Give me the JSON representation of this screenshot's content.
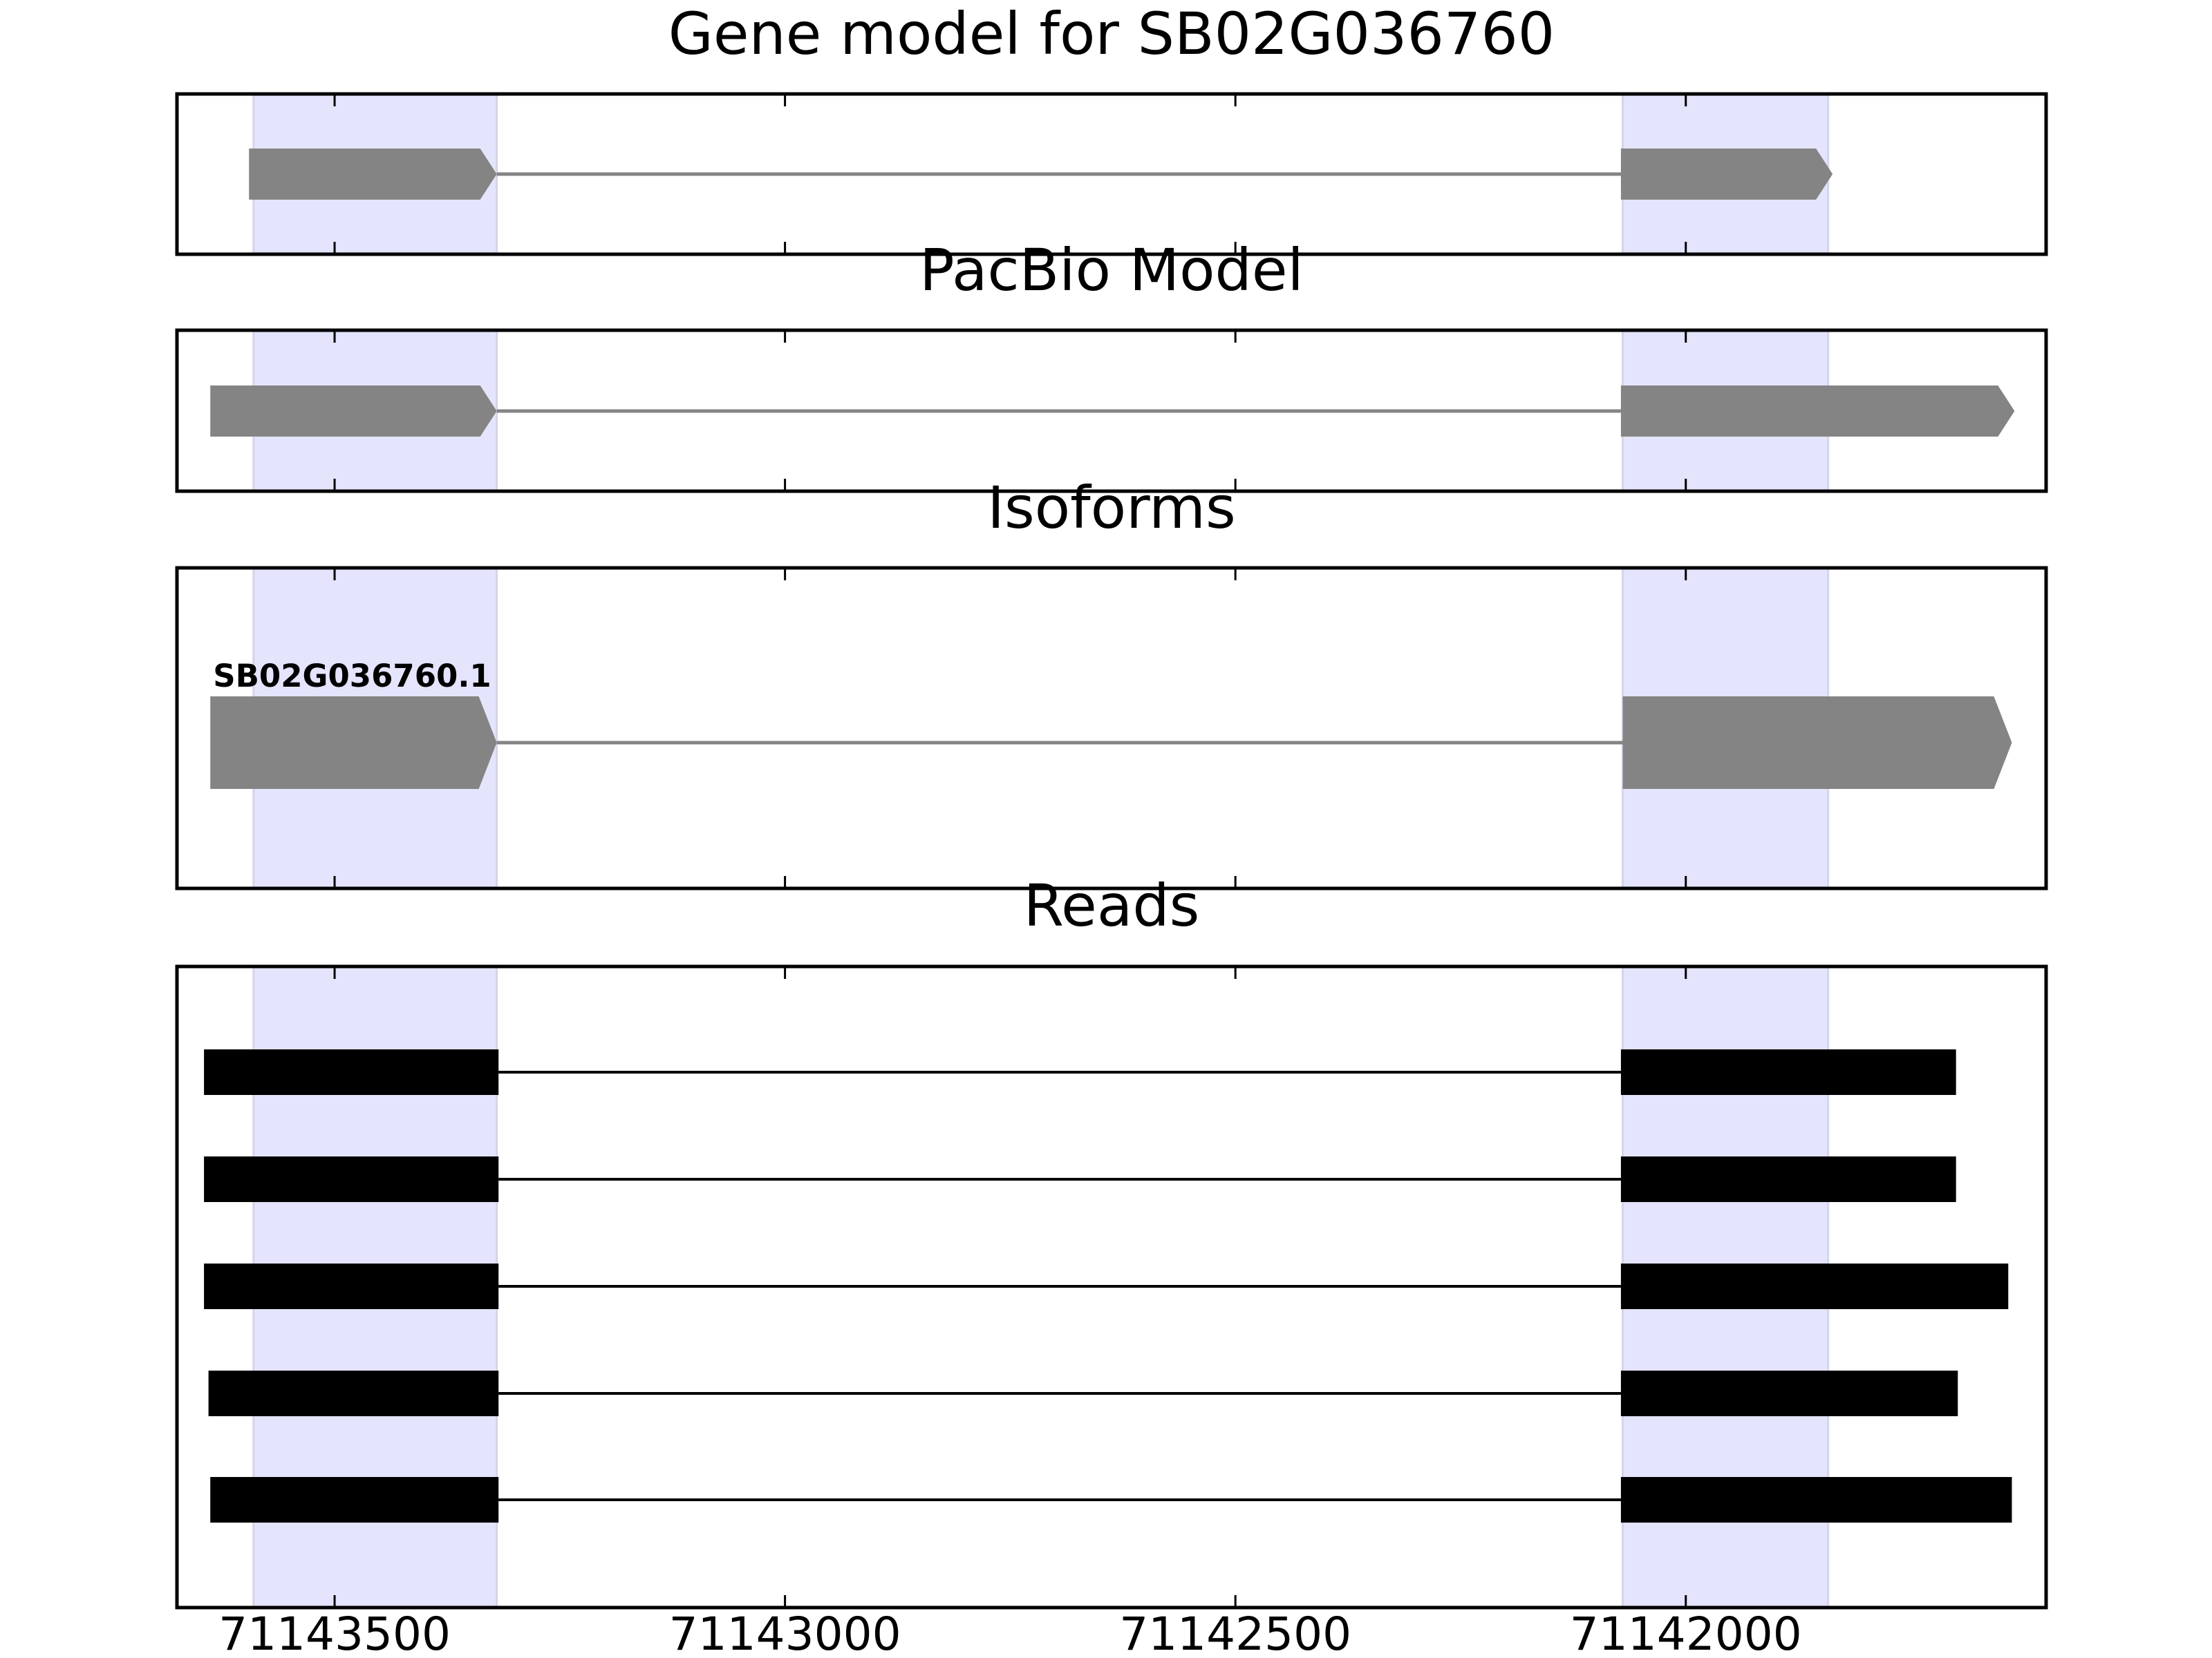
{
  "chart_data": {
    "type": "gene-structure",
    "strand": "-",
    "x_axis": {
      "reversed": true,
      "xlim": [
        71143675,
        71141600
      ],
      "ticks": [
        71143500,
        71143000,
        71142500,
        71142000
      ],
      "tick_labels": [
        "71143500",
        "71143000",
        "71142500",
        "71142000"
      ]
    },
    "exon_highlights": [
      {
        "start": 71143590,
        "end": 71143320
      },
      {
        "start": 71142070,
        "end": 71141842
      }
    ],
    "panels": [
      {
        "id": "gene-model",
        "title": "Gene model for SB02G036760",
        "kind": "model",
        "color": "#848484",
        "transcripts": [
          {
            "label": "",
            "exons": [
              [
                71143595,
                71143320
              ],
              [
                71142072,
                71141837
              ]
            ]
          }
        ]
      },
      {
        "id": "pacbio-model",
        "title": "PacBio Model",
        "kind": "model",
        "color": "#848484",
        "transcripts": [
          {
            "label": "",
            "exons": [
              [
                71143638,
                71143320
              ],
              [
                71142072,
                71141635
              ]
            ]
          }
        ]
      },
      {
        "id": "isoforms",
        "title": "Isoforms",
        "kind": "model",
        "color": "#848484",
        "transcripts": [
          {
            "label": "SB02G036760.1",
            "exons": [
              [
                71143638,
                71143320
              ],
              [
                71142070,
                71141638
              ]
            ]
          }
        ]
      },
      {
        "id": "reads",
        "title": "Reads",
        "kind": "reads",
        "color": "#000000",
        "transcripts": [
          {
            "label": "",
            "exons": [
              [
                71143645,
                71143318
              ],
              [
                71142072,
                71141700
              ]
            ]
          },
          {
            "label": "",
            "exons": [
              [
                71143645,
                71143318
              ],
              [
                71142072,
                71141700
              ]
            ]
          },
          {
            "label": "",
            "exons": [
              [
                71143645,
                71143318
              ],
              [
                71142072,
                71141642
              ]
            ]
          },
          {
            "label": "",
            "exons": [
              [
                71143640,
                71143318
              ],
              [
                71142072,
                71141698
              ]
            ]
          },
          {
            "label": "",
            "exons": [
              [
                71143638,
                71143318
              ],
              [
                71142072,
                71141638
              ]
            ]
          }
        ]
      }
    ]
  }
}
